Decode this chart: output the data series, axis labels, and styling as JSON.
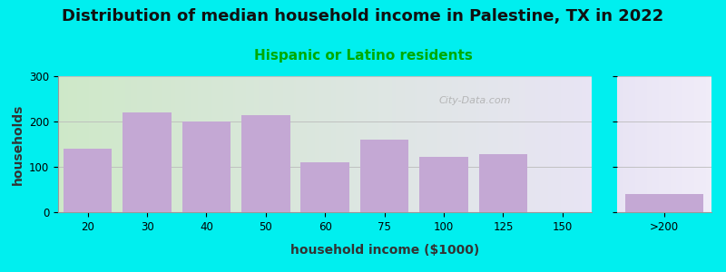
{
  "title": "Distribution of median household income in Palestine, TX in 2022",
  "subtitle": "Hispanic or Latino residents",
  "xlabel": "household income ($1000)",
  "ylabel": "households",
  "bar_color": "#C4A8D4",
  "ylim": [
    0,
    300
  ],
  "yticks": [
    0,
    100,
    200,
    300
  ],
  "bg_outer": "#00EFEF",
  "title_fontsize": 13,
  "subtitle_fontsize": 11,
  "subtitle_color": "#00AA00",
  "axis_label_fontsize": 10,
  "watermark": "City-Data.com",
  "bar_values_main": [
    140,
    220,
    200,
    215,
    110,
    160,
    122,
    128,
    0
  ],
  "bar_labels_main": [
    "20",
    "30",
    "40",
    "50",
    "60",
    "75",
    "100",
    "125",
    "150"
  ],
  "bar_value_last": 40,
  "bar_label_last": ">200"
}
